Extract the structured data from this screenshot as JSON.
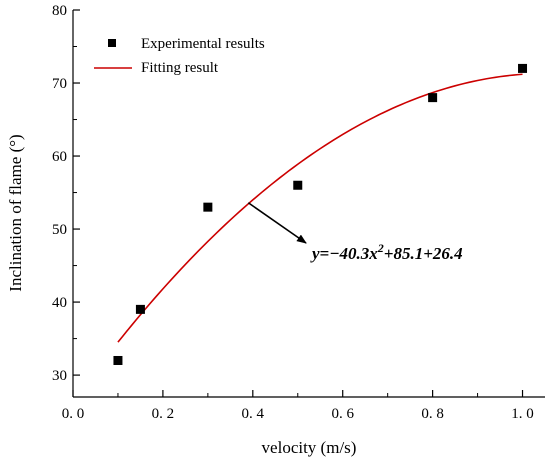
{
  "chart_data": {
    "type": "scatter",
    "xlabel": "velocity (m/s)",
    "ylabel": "Inclination of flame (°)",
    "xlim": [
      0.0,
      1.05
    ],
    "ylim": [
      27,
      80
    ],
    "x_ticks": [
      "0.0",
      "0.2",
      "0.4",
      "0.6",
      "0.8",
      "1.0"
    ],
    "y_ticks": [
      "30",
      "40",
      "50",
      "60",
      "70",
      "80"
    ],
    "grid": false,
    "legend_position": "top-left",
    "series": [
      {
        "name": "Experimental results",
        "type": "scatter",
        "marker": "square",
        "color": "#000000",
        "points": [
          {
            "x": 0.1,
            "y": 32
          },
          {
            "x": 0.15,
            "y": 39
          },
          {
            "x": 0.3,
            "y": 53
          },
          {
            "x": 0.5,
            "y": 56
          },
          {
            "x": 0.8,
            "y": 68
          },
          {
            "x": 1.0,
            "y": 72
          }
        ]
      },
      {
        "name": "Fitting result",
        "type": "line",
        "color": "#cc0000",
        "x_range": [
          0.1,
          1.0
        ],
        "coefficients": {
          "a": -40.3,
          "b": 85.1,
          "c": 26.4
        }
      }
    ],
    "annotation": {
      "text_prefix": "y=−40.3x",
      "text_exponent": "2",
      "text_suffix": "+85.1+26.4",
      "arrow_from": {
        "x": 0.39,
        "y": 53.6
      }
    }
  }
}
